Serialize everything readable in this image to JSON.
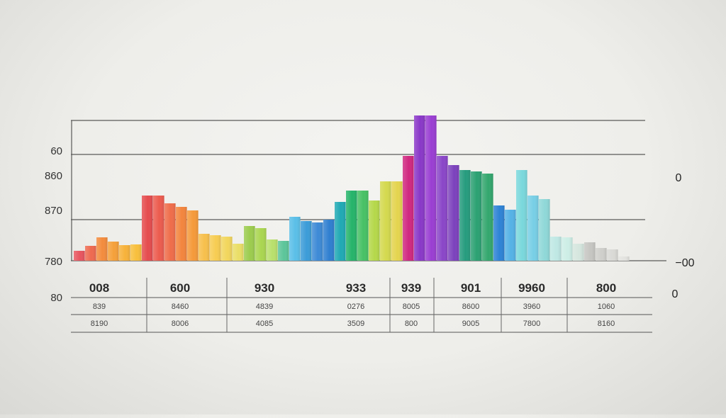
{
  "chart_data": {
    "type": "bar",
    "title": "",
    "xlabel": "",
    "ylabel": "",
    "ylim": [
      0,
      205
    ],
    "grid": true,
    "values": [
      14,
      21,
      33,
      27,
      22,
      23,
      92,
      92,
      81,
      76,
      71,
      38,
      36,
      34,
      24,
      49,
      46,
      30,
      28,
      62,
      56,
      54,
      58,
      83,
      99,
      99,
      85,
      112,
      112,
      148,
      205,
      205,
      148,
      135,
      128,
      126,
      123,
      78,
      72,
      128,
      92,
      87,
      34,
      33,
      24,
      26,
      18,
      16,
      6
    ],
    "colors": [
      "#e8555f",
      "#ee6a50",
      "#f38c3e",
      "#f5a03a",
      "#f7b23a",
      "#f8bf3c",
      "#e54c4e",
      "#ec5b4e",
      "#ef6d4a",
      "#f3853e",
      "#f59a3a",
      "#f7c04c",
      "#f7cd52",
      "#f2d65c",
      "#eade66",
      "#9ccc4e",
      "#aad650",
      "#b9e06c",
      "#5cc59a",
      "#5abfe8",
      "#3b9cd8",
      "#3d8ad6",
      "#2f7fd0",
      "#20a9b4",
      "#26b46a",
      "#47c165",
      "#b5d84a",
      "#d4d94e",
      "#e4d44e",
      "#d02880",
      "#8a38c8",
      "#9a3ed2",
      "#8a46c8",
      "#7c42bd",
      "#269c7e",
      "#2ba172",
      "#33a76e",
      "#2e83d6",
      "#55b2e6",
      "#7ad8dc",
      "#78cfe6",
      "#8fd8d8",
      "#bfe8e4",
      "#cdeee6",
      "#d5e6de",
      "#c6c6c2",
      "#cfcfcb",
      "#d9d9d5",
      "#e3e3df"
    ],
    "axis_labels_left": [
      "60",
      "860",
      "870",
      "780",
      "80"
    ],
    "axis_labels_right": [
      "0",
      "−00",
      "0"
    ],
    "table": {
      "headers": [
        "008",
        "600",
        "930",
        "933",
        "939",
        "901",
        "9960",
        "800"
      ],
      "row1": [
        "839",
        "8460",
        "4839",
        "0276",
        "8005",
        "8600",
        "3960",
        "1060"
      ],
      "row2": [
        "8190",
        "8006",
        "4085",
        "3509",
        "800",
        "9005",
        "7800",
        "8160"
      ]
    }
  }
}
